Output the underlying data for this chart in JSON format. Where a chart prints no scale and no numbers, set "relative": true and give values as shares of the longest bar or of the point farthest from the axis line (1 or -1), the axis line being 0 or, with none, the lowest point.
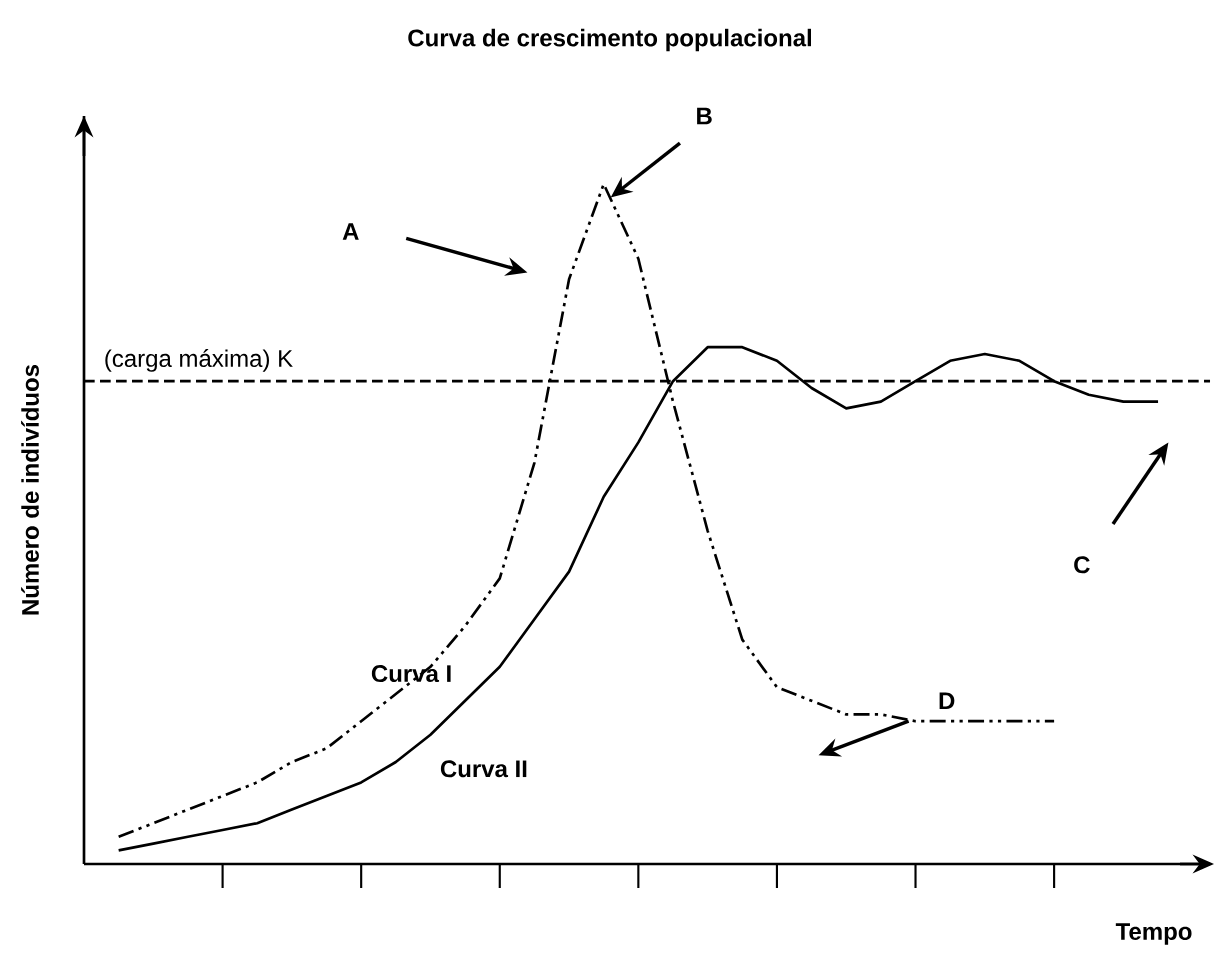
{
  "chart_data": {
    "type": "line",
    "title": "Curva de crescimento populacional",
    "xlabel": "Tempo",
    "ylabel": "Número de indivíduos",
    "relative": true,
    "categories": [
      null,
      null,
      null,
      null,
      null,
      null,
      null,
      null,
      null,
      null,
      null,
      null,
      null,
      null,
      null,
      null,
      null,
      null,
      null,
      null,
      null,
      null,
      null,
      null,
      null,
      null,
      null,
      null,
      null,
      null,
      null,
      null,
      null
    ],
    "series": [
      {
        "name": "Curva I",
        "color": "#000000",
        "line_style": "dashed",
        "values": [
          null,
          0.04,
          0.06,
          0.08,
          0.1,
          0.12,
          0.15,
          0.17,
          0.21,
          0.25,
          0.29,
          0.35,
          0.42,
          0.59,
          0.86,
          1.0,
          0.89,
          0.68,
          0.49,
          0.33,
          0.26,
          0.24,
          0.22,
          0.22,
          0.21,
          0.21,
          0.21,
          0.21,
          0.21,
          null,
          null,
          null,
          null
        ]
      },
      {
        "name": "Curva II",
        "color": "#000000",
        "line_style": "solid",
        "values": [
          null,
          0.02,
          0.03,
          0.04,
          0.05,
          0.06,
          0.08,
          0.1,
          0.12,
          0.15,
          0.19,
          0.24,
          0.29,
          0.36,
          0.43,
          0.54,
          0.62,
          0.71,
          0.76,
          0.76,
          0.74,
          0.7,
          0.67,
          0.68,
          0.71,
          0.74,
          0.75,
          0.74,
          0.71,
          0.69,
          0.68,
          0.68,
          null
        ]
      }
    ],
    "ref_lines": [
      {
        "axis": "y",
        "value": 0.71,
        "label": "(carga máxima) K",
        "color": "#000000",
        "line_style": "dashed"
      }
    ],
    "annotations": [
      "A",
      "B",
      "C",
      "D"
    ],
    "grid": false,
    "marker": "none"
  }
}
